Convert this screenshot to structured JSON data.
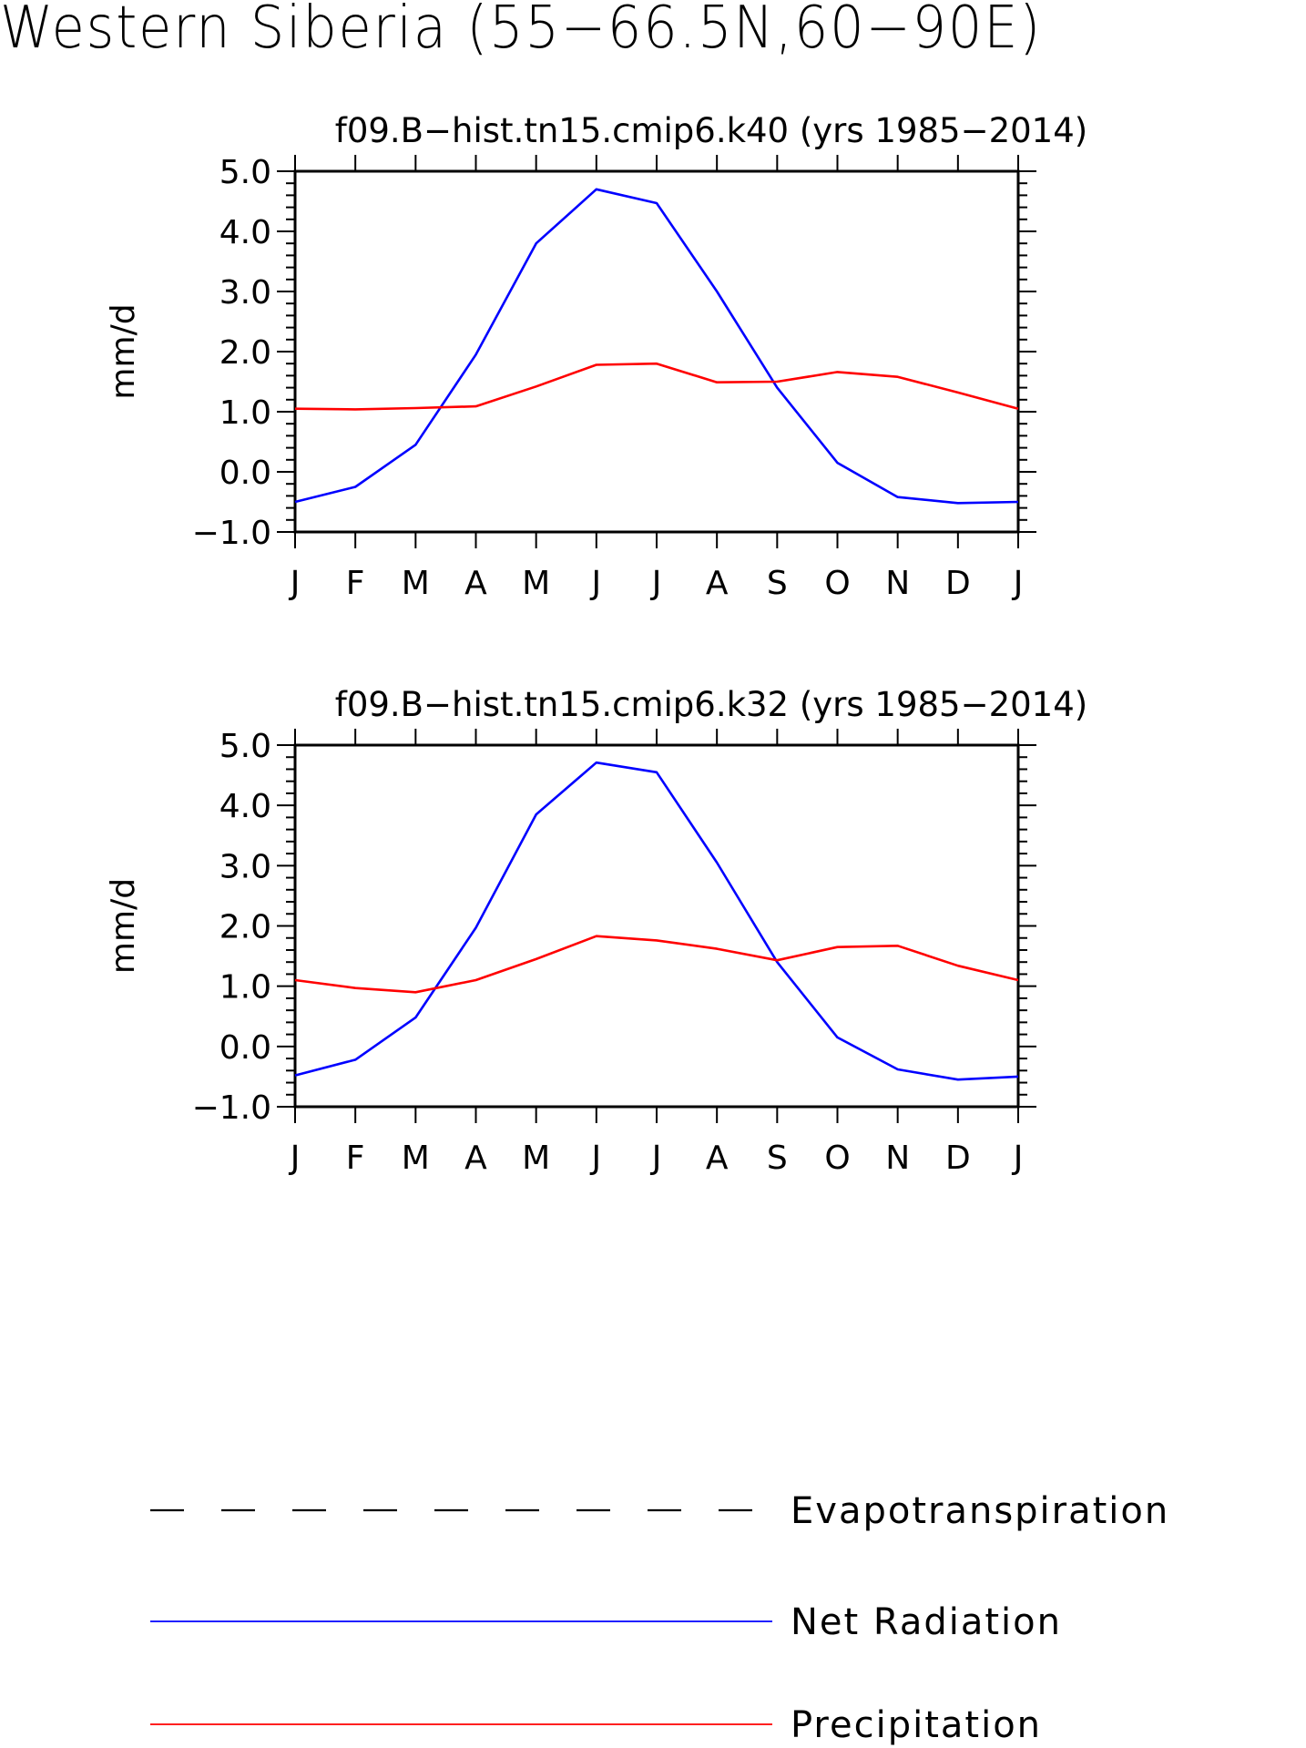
{
  "title": "Western Siberia (55−66.5N,60−90E)",
  "chart_data": [
    {
      "type": "line",
      "title": "f09.B−hist.tn15.cmip6.k40 (yrs 1985−2014)",
      "ylabel": "mm/d",
      "xlabel": "",
      "categories": [
        "J",
        "F",
        "M",
        "A",
        "M",
        "J",
        "J",
        "A",
        "S",
        "O",
        "N",
        "D",
        "J"
      ],
      "yticks": [
        "5.0",
        "4.0",
        "3.0",
        "2.0",
        "1.0",
        "0.0",
        "−1.0"
      ],
      "ylim": [
        -1,
        5
      ],
      "series": [
        {
          "name": "Net Radiation",
          "color": "#0000ff",
          "values": [
            -0.5,
            -0.25,
            0.45,
            1.95,
            3.8,
            4.7,
            4.47,
            3.0,
            1.4,
            0.15,
            -0.42,
            -0.52,
            -0.5
          ]
        },
        {
          "name": "Precipitation",
          "color": "#ff0000",
          "values": [
            1.05,
            1.04,
            1.06,
            1.09,
            1.42,
            1.78,
            1.8,
            1.49,
            1.5,
            1.66,
            1.58,
            1.32,
            1.05
          ]
        }
      ]
    },
    {
      "type": "line",
      "title": "f09.B−hist.tn15.cmip6.k32 (yrs 1985−2014)",
      "ylabel": "mm/d",
      "xlabel": "",
      "categories": [
        "J",
        "F",
        "M",
        "A",
        "M",
        "J",
        "J",
        "A",
        "S",
        "O",
        "N",
        "D",
        "J"
      ],
      "yticks": [
        "5.0",
        "4.0",
        "3.0",
        "2.0",
        "1.0",
        "0.0",
        "−1.0"
      ],
      "ylim": [
        -1,
        5
      ],
      "series": [
        {
          "name": "Net Radiation",
          "color": "#0000ff",
          "values": [
            -0.48,
            -0.22,
            0.48,
            1.97,
            3.85,
            4.71,
            4.55,
            3.05,
            1.4,
            0.15,
            -0.38,
            -0.55,
            -0.5
          ]
        },
        {
          "name": "Precipitation",
          "color": "#ff0000",
          "values": [
            1.1,
            0.97,
            0.9,
            1.1,
            1.45,
            1.83,
            1.76,
            1.62,
            1.43,
            1.65,
            1.67,
            1.34,
            1.1
          ]
        }
      ]
    }
  ],
  "legend": [
    {
      "label": "Evapotranspiration",
      "color": "#000000",
      "style": "dashed"
    },
    {
      "label": "Net Radiation",
      "color": "#0000ff",
      "style": "solid"
    },
    {
      "label": "Precipitation",
      "color": "#ff0000",
      "style": "solid"
    }
  ]
}
